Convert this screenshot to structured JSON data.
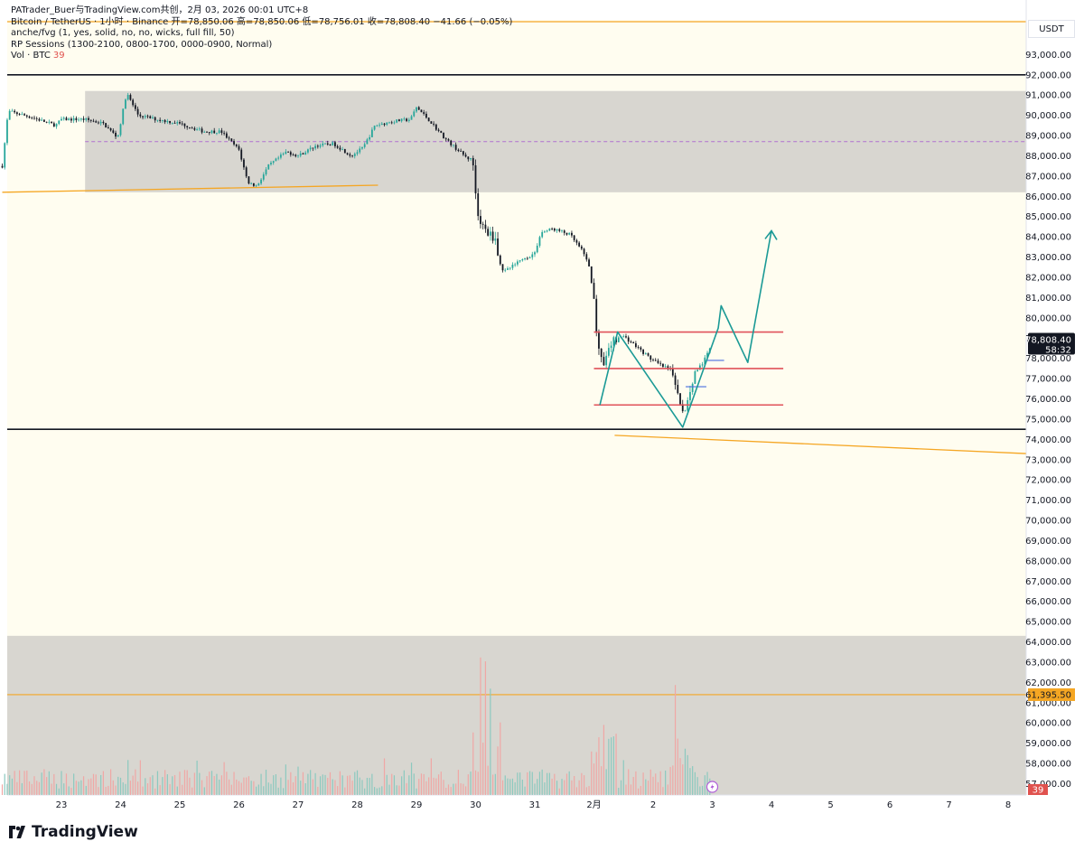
{
  "header": {
    "attribution": "PATrader_Buer与TradingView.com共创，2月 03, 2026 00:01 UTC+8",
    "symbol_line": "Bitcoin / TetherUS · 1小时 · Binance  开=78,850.06  高=78,850.06  低=78,756.01  收=78,808.40  −41.66 (−0.05%)",
    "indicator_1": "anche/fvg (1, yes, solid, no, no, wicks, full fill, 50)",
    "indicator_2": "RP Sessions (1300-2100, 0800-1700, 0000-0900, Normal)",
    "volume_label": "Vol · BTC",
    "volume_value": "39"
  },
  "footer": {
    "brand": "TradingView"
  },
  "chart_data": {
    "type": "candlestick",
    "symbol": "Bitcoin / TetherUS",
    "interval": "1小时",
    "exchange": "Binance",
    "quote_currency": "USDT",
    "ohlc": {
      "open": 78850.06,
      "high": 78850.06,
      "low": 78756.01,
      "close": 78808.4,
      "change": -41.66,
      "change_pct": -0.05
    },
    "y_axis": {
      "min": 56500,
      "max": 94000,
      "tick_step": 1000,
      "tick_min": 57000,
      "tick_max": 93000
    },
    "x_axis": {
      "ticks": [
        {
          "label": "23",
          "t": 23
        },
        {
          "label": "24",
          "t": 24
        },
        {
          "label": "25",
          "t": 25
        },
        {
          "label": "26",
          "t": 26
        },
        {
          "label": "27",
          "t": 27
        },
        {
          "label": "28",
          "t": 28
        },
        {
          "label": "29",
          "t": 29
        },
        {
          "label": "30",
          "t": 30
        },
        {
          "label": "31",
          "t": 31
        },
        {
          "label": "2月",
          "t": 32
        },
        {
          "label": "2",
          "t": 33
        },
        {
          "label": "3",
          "t": 34
        },
        {
          "label": "4",
          "t": 35
        },
        {
          "label": "5",
          "t": 36
        },
        {
          "label": "6",
          "t": 37
        },
        {
          "label": "7",
          "t": 38
        },
        {
          "label": "8",
          "t": 39
        }
      ]
    },
    "price_path": [
      [
        22.0,
        87500
      ],
      [
        22.1,
        90200
      ],
      [
        22.5,
        89900
      ],
      [
        22.9,
        89500
      ],
      [
        23.0,
        89800
      ],
      [
        23.4,
        89800
      ],
      [
        23.7,
        89600
      ],
      [
        23.95,
        88900
      ],
      [
        24.1,
        91100
      ],
      [
        24.3,
        90000
      ],
      [
        24.6,
        89800
      ],
      [
        25.0,
        89600
      ],
      [
        25.4,
        89200
      ],
      [
        25.7,
        89200
      ],
      [
        26.0,
        88300
      ],
      [
        26.15,
        86700
      ],
      [
        26.3,
        86500
      ],
      [
        26.5,
        87500
      ],
      [
        26.8,
        88200
      ],
      [
        27.0,
        88000
      ],
      [
        27.3,
        88500
      ],
      [
        27.6,
        88600
      ],
      [
        27.9,
        88000
      ],
      [
        28.1,
        88400
      ],
      [
        28.3,
        89500
      ],
      [
        28.6,
        89700
      ],
      [
        28.9,
        89800
      ],
      [
        29.0,
        90400
      ],
      [
        29.2,
        89800
      ],
      [
        29.5,
        88800
      ],
      [
        29.85,
        87900
      ],
      [
        29.95,
        87800
      ],
      [
        30.05,
        84800
      ],
      [
        30.2,
        84200
      ],
      [
        30.35,
        83900
      ],
      [
        30.4,
        82500
      ],
      [
        30.5,
        82300
      ],
      [
        30.7,
        82700
      ],
      [
        31.0,
        83200
      ],
      [
        31.1,
        84200
      ],
      [
        31.3,
        84400
      ],
      [
        31.6,
        84100
      ],
      [
        31.8,
        83300
      ],
      [
        31.9,
        82800
      ],
      [
        32.0,
        80900
      ],
      [
        32.05,
        79000
      ],
      [
        32.15,
        77500
      ],
      [
        32.3,
        78800
      ],
      [
        32.5,
        79100
      ],
      [
        32.75,
        78500
      ],
      [
        32.95,
        78000
      ],
      [
        33.1,
        77700
      ],
      [
        33.3,
        77400
      ],
      [
        33.4,
        76700
      ],
      [
        33.5,
        75300
      ],
      [
        33.6,
        76000
      ],
      [
        33.7,
        77300
      ],
      [
        33.85,
        77800
      ],
      [
        34.0,
        78800
      ]
    ],
    "volume": {
      "label": "Vol · BTC",
      "last": 39,
      "scale_max": 60
    },
    "annotations": {
      "premium_zone": {
        "from_t": 23.4,
        "to_t": 39.3,
        "low": 86200,
        "high": 91200
      },
      "premium_midline": 88700,
      "horizontal_lines": [
        92000,
        74500
      ],
      "right_price_line": 61395.5,
      "volume_zone": {
        "low": 56500,
        "high": 64300
      },
      "trendlines": [
        {
          "from": [
            22.0,
            86200
          ],
          "to": [
            28.35,
            86550
          ]
        },
        {
          "from": [
            32.35,
            74200
          ],
          "to": [
            39.3,
            73300
          ]
        }
      ],
      "range_lines": [
        {
          "price": 79300,
          "from_t": 32.0,
          "to_t": 35.2
        },
        {
          "price": 77500,
          "from_t": 32.0,
          "to_t": 35.2
        },
        {
          "price": 75700,
          "from_t": 32.0,
          "to_t": 35.2
        }
      ],
      "projection_path": [
        [
          32.1,
          75700
        ],
        [
          32.4,
          79300
        ],
        [
          33.5,
          74600
        ],
        [
          34.1,
          79500
        ],
        [
          34.15,
          80600
        ],
        [
          34.6,
          77800
        ],
        [
          35.0,
          84300
        ]
      ]
    },
    "price_labels": {
      "last_price": "78,808.40",
      "countdown": "58:32",
      "line_label": "61,395.50",
      "volume_value": "39"
    },
    "colors": {
      "background": "#fffdf0",
      "zone": "#d8d6d0",
      "candle_up": "#26a69a",
      "candle_down": "#131722",
      "projection": "#1b9a96",
      "range_line": "#e0525a",
      "orange_line": "#f5a623",
      "midline": "#b070d0",
      "volume_up": "#8cc9bf",
      "volume_down": "#f0a7a5"
    }
  }
}
